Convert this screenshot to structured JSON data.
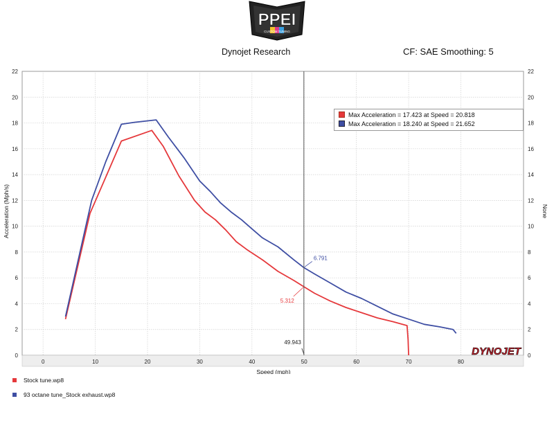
{
  "header": {
    "logo_text": "PPEI",
    "logo_subtext": "CUSTOM TUNING",
    "title": "Dynojet Research",
    "right_info": "CF: SAE Smoothing: 5"
  },
  "watermark": "DYNOJET",
  "colors": {
    "stock": "#e5383b",
    "tune": "#3e4ea3",
    "grid": "#cfcfcf",
    "cursor": "#555555"
  },
  "annotation_box": {
    "lines": [
      {
        "text": "Max Acceleration = 17.423 at Speed = 20.818",
        "series": 0
      },
      {
        "text": "Max Acceleration = 18.240 at Speed = 21.652",
        "series": 1
      }
    ]
  },
  "legend": [
    {
      "label": "Stock tune.wp8",
      "series": 0
    },
    {
      "label": "93 octane tune_Stock exhaust.wp8",
      "series": 1
    }
  ],
  "chart_data": {
    "type": "line",
    "xlabel": "Speed (mph)",
    "ylabel": "Acceleration (Mph/s)",
    "ylabel_right": "None",
    "xlim": [
      -4,
      92
    ],
    "ylim": [
      0,
      22
    ],
    "x_ticks": [
      0,
      10,
      20,
      30,
      40,
      50,
      60,
      70,
      80
    ],
    "y_ticks": [
      0,
      2,
      4,
      6,
      8,
      10,
      12,
      14,
      16,
      18,
      20,
      22
    ],
    "grid": true,
    "cursor": {
      "x": 49.943,
      "x_label": "49.943",
      "values": [
        5.312,
        6.791
      ],
      "value_labels": [
        "5.312",
        "6.791"
      ]
    },
    "series": [
      {
        "name": "Stock tune.wp8",
        "x": [
          4.3,
          9,
          12,
          15,
          20.818,
          23,
          26,
          29,
          31,
          33,
          35,
          37,
          39,
          42,
          45,
          48,
          49.943,
          52,
          55,
          58,
          61,
          64,
          67,
          69.7,
          69.9,
          70
        ],
        "y": [
          2.8,
          11,
          13.8,
          16.6,
          17.423,
          16.2,
          13.9,
          12,
          11.1,
          10.5,
          9.7,
          8.8,
          8.2,
          7.4,
          6.5,
          5.8,
          5.312,
          4.8,
          4.2,
          3.7,
          3.3,
          2.9,
          2.6,
          2.3,
          1.2,
          0
        ]
      },
      {
        "name": "93 octane tune_Stock exhaust.wp8",
        "x": [
          4.3,
          9.3,
          12,
          15,
          17.5,
          21.652,
          24,
          27,
          30,
          32,
          34,
          36,
          38,
          40,
          42,
          45,
          48,
          49.943,
          52,
          55,
          58,
          61,
          64,
          67,
          70,
          73,
          76,
          78.5,
          79.1
        ],
        "y": [
          3.0,
          12,
          15,
          17.9,
          18.05,
          18.24,
          16.9,
          15.3,
          13.5,
          12.7,
          11.8,
          11.1,
          10.5,
          9.8,
          9.1,
          8.4,
          7.4,
          6.791,
          6.3,
          5.6,
          4.9,
          4.4,
          3.8,
          3.2,
          2.8,
          2.4,
          2.2,
          2.0,
          1.7
        ]
      }
    ]
  }
}
